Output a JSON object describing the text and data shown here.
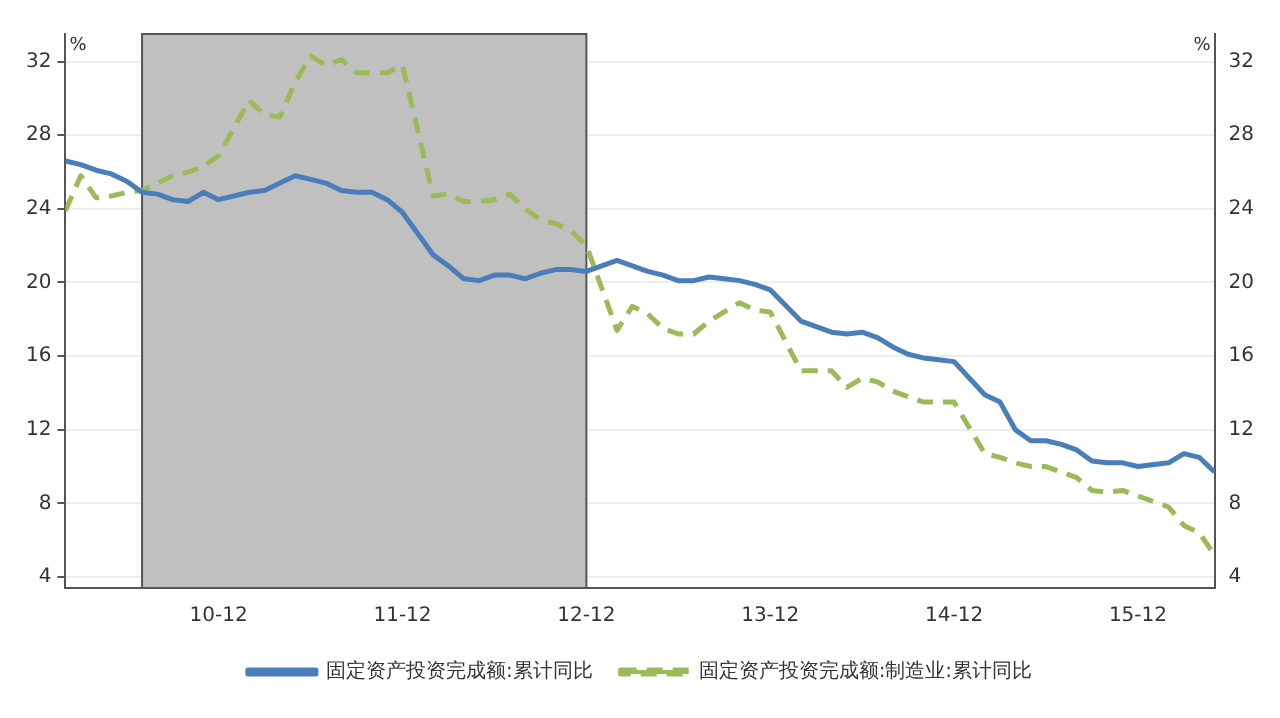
{
  "chart_data": {
    "type": "line",
    "x": [
      "2010-02",
      "2010-03",
      "2010-04",
      "2010-05",
      "2010-06",
      "2010-07",
      "2010-08",
      "2010-09",
      "2010-10",
      "2010-11",
      "2010-12",
      "2011-02",
      "2011-03",
      "2011-04",
      "2011-05",
      "2011-06",
      "2011-07",
      "2011-08",
      "2011-09",
      "2011-10",
      "2011-11",
      "2011-12",
      "2012-02",
      "2012-03",
      "2012-04",
      "2012-05",
      "2012-06",
      "2012-07",
      "2012-08",
      "2012-09",
      "2012-10",
      "2012-11",
      "2012-12",
      "2013-02",
      "2013-03",
      "2013-04",
      "2013-05",
      "2013-06",
      "2013-07",
      "2013-08",
      "2013-09",
      "2013-10",
      "2013-11",
      "2013-12",
      "2014-02",
      "2014-03",
      "2014-04",
      "2014-05",
      "2014-06",
      "2014-07",
      "2014-08",
      "2014-09",
      "2014-10",
      "2014-11",
      "2014-12",
      "2015-02",
      "2015-03",
      "2015-04",
      "2015-05",
      "2015-06",
      "2015-07",
      "2015-08",
      "2015-09",
      "2015-10",
      "2015-11",
      "2015-12",
      "2016-02",
      "2016-03",
      "2016-04",
      "2016-05"
    ],
    "series": [
      {
        "name": "固定资产投资完成额:累计同比",
        "color": "#4a7ebb",
        "line_style": "solid",
        "values": [
          26.6,
          26.4,
          26.1,
          25.9,
          25.5,
          24.9,
          24.8,
          24.5,
          24.4,
          24.9,
          24.5,
          24.9,
          25.0,
          25.4,
          25.8,
          25.6,
          25.4,
          25.0,
          24.9,
          24.9,
          24.5,
          23.8,
          21.5,
          20.9,
          20.2,
          20.1,
          20.4,
          20.4,
          20.2,
          20.5,
          20.7,
          20.7,
          20.6,
          21.2,
          20.9,
          20.6,
          20.4,
          20.1,
          20.1,
          20.3,
          20.2,
          20.1,
          19.9,
          19.6,
          17.9,
          17.6,
          17.3,
          17.2,
          17.3,
          17.0,
          16.5,
          16.1,
          15.9,
          15.8,
          15.7,
          13.9,
          13.5,
          12.0,
          11.4,
          11.4,
          11.2,
          10.9,
          10.3,
          10.2,
          10.2,
          10.0,
          10.2,
          10.7,
          10.5,
          9.7
        ]
      },
      {
        "name": "固定资产投资完成额:制造业:累计同比",
        "color": "#9bbb59",
        "line_style": "dashed",
        "values": [
          23.9,
          25.8,
          24.6,
          24.7,
          24.9,
          25.0,
          25.4,
          25.8,
          26.0,
          26.3,
          26.9,
          29.9,
          29.1,
          29.0,
          30.9,
          32.3,
          31.8,
          32.1,
          31.4,
          31.4,
          31.4,
          31.8,
          24.7,
          24.8,
          24.4,
          24.4,
          24.5,
          24.8,
          24.0,
          23.4,
          23.2,
          22.8,
          22.0,
          17.4,
          18.7,
          18.3,
          17.5,
          17.2,
          17.2,
          17.9,
          18.4,
          18.9,
          18.5,
          18.4,
          15.2,
          15.2,
          15.2,
          14.3,
          14.8,
          14.6,
          14.1,
          13.8,
          13.5,
          13.5,
          13.5,
          10.7,
          10.5,
          10.2,
          10.0,
          10.0,
          9.7,
          9.4,
          8.7,
          8.6,
          8.7,
          8.4,
          7.8,
          6.8,
          6.4,
          5.2
        ]
      }
    ],
    "xlim": [
      "2010-02",
      "2016-05"
    ],
    "xticks": [
      {
        "value": "2010-12",
        "label": "10-12"
      },
      {
        "value": "2011-12",
        "label": "11-12"
      },
      {
        "value": "2012-12",
        "label": "12-12"
      },
      {
        "value": "2013-12",
        "label": "13-12"
      },
      {
        "value": "2014-12",
        "label": "14-12"
      },
      {
        "value": "2015-12",
        "label": "15-12"
      }
    ],
    "ylim": [
      3.4,
      33.5
    ],
    "yticks": [
      4,
      8,
      12,
      16,
      20,
      24,
      28,
      32
    ],
    "y2lim": [
      3.4,
      33.5
    ],
    "y2ticks": [
      4,
      8,
      12,
      16,
      20,
      24,
      28,
      32
    ],
    "ylabel": "%",
    "y2label": "%",
    "bands": [
      {
        "axis": "x",
        "from": "2010-07",
        "to": "2012-12",
        "color": "#c0c0c0"
      }
    ],
    "grid": "y",
    "legend": "bottom",
    "marker": "none"
  }
}
